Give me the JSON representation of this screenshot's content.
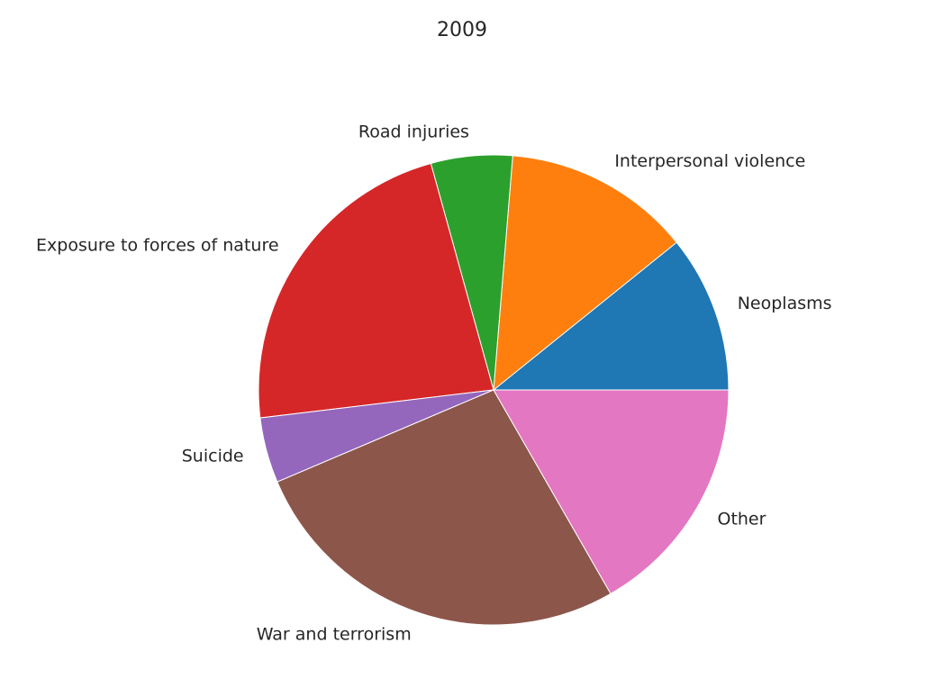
{
  "chart_data": {
    "type": "pie",
    "title": "2009",
    "start_angle_deg": 0,
    "direction": "counterclockwise",
    "slices": [
      {
        "label": "Neoplasms",
        "value": 10.8,
        "color": "#1f77b4"
      },
      {
        "label": "Interpersonal violence",
        "value": 12.9,
        "color": "#ff7f0e"
      },
      {
        "label": "Road injuries",
        "value": 5.6,
        "color": "#2ca02c"
      },
      {
        "label": "Exposure to forces of nature",
        "value": 22.6,
        "color": "#d62728"
      },
      {
        "label": "Suicide",
        "value": 4.5,
        "color": "#9467bd"
      },
      {
        "label": "War and terrorism",
        "value": 26.9,
        "color": "#8c564b"
      },
      {
        "label": "Other",
        "value": 16.7,
        "color": "#e377c2"
      }
    ]
  }
}
